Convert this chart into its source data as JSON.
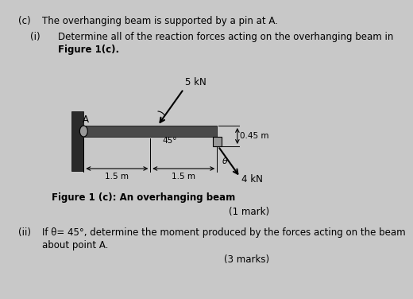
{
  "bg_color": "#c8c8c8",
  "title_c": "(c)",
  "title_text": "The overhanging beam is supported by a pin at A.",
  "sub_i": "(i)",
  "sub_i_line1": "Determine all of the reaction forces acting on the overhanging beam in",
  "sub_i_line2": "Figure 1(c).",
  "sub_ii": "(ii)",
  "sub_ii_line1": "If θ= 45°, determine the moment produced by the forces acting on the beam",
  "sub_ii_line2": "about point A.",
  "mark_i": "(1 mark)",
  "mark_ii": "(3 marks)",
  "fig_caption": "Figure 1 (c): An overhanging beam",
  "beam_color": "#4a4a4a",
  "wall_color": "#2a2a2a",
  "force_5kN": "5 kN",
  "force_4kN": "4 kN",
  "angle_label": "45°",
  "theta_label": "θ",
  "dim_15_left": "1.5 m",
  "dim_15_right": "1.5 m",
  "dim_045": "0.45 m",
  "label_A": "A"
}
